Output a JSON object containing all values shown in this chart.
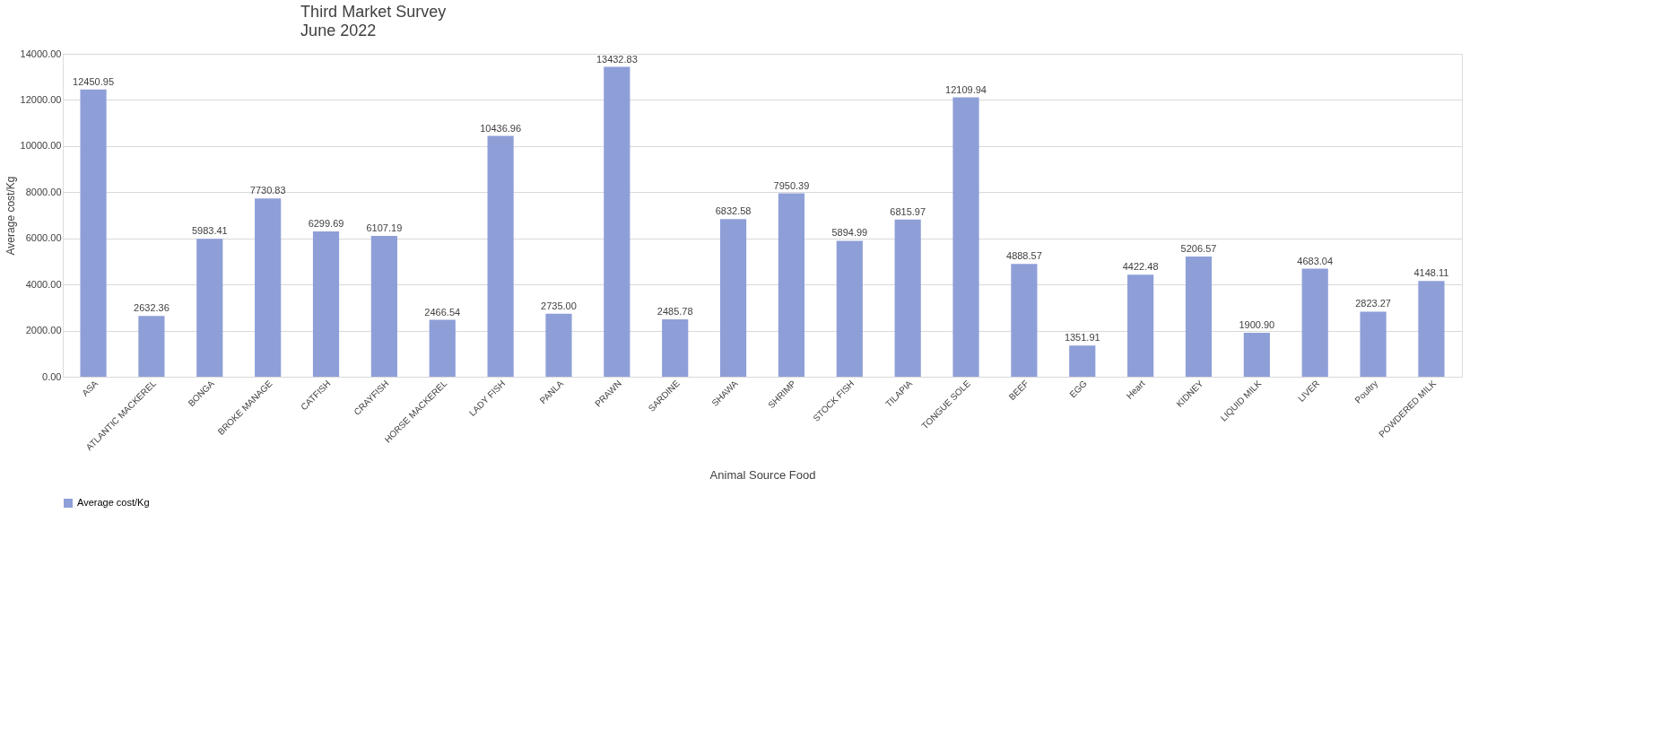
{
  "chart_data": {
    "type": "bar",
    "title": "Third Market Survey",
    "subtitle": "June  2022",
    "xlabel": "Animal Source Food",
    "ylabel": "Average cost/Kg",
    "categories": [
      "ASA",
      "ATLANTIC MACKEREL",
      "BONGA",
      "BROKE MANAGE",
      "CATFISH",
      "CRAYFISH",
      "HORSE MACKEREL",
      "LADY FISH",
      "PANLA",
      "PRAWN",
      "SARDINE",
      "SHAWA",
      "SHRIMP",
      "STOCK FISH",
      "TILAPIA",
      "TONGUE SOLE",
      "BEEF",
      "EGG",
      "Heart",
      "KIDNEY",
      "LIQUID MILK",
      "LIVER",
      "Poultry",
      "POWDERED MILK"
    ],
    "series": [
      {
        "name": "Average cost/Kg",
        "color": "#8e9fd8",
        "values": [
          12450.95,
          2632.36,
          5983.41,
          7730.83,
          6299.69,
          6107.19,
          2466.54,
          10436.96,
          2735.0,
          13432.83,
          2485.78,
          6832.58,
          7950.39,
          5894.99,
          6815.97,
          12109.94,
          4888.57,
          1351.91,
          4422.48,
          5206.57,
          1900.9,
          4683.04,
          2823.27,
          4148.11
        ],
        "value_labels": [
          "12450.95",
          "2632.36",
          "5983.41",
          "7730.83",
          "6299.69",
          "6107.19",
          "2466.54",
          "10436.96",
          "2735.00",
          "13432.83",
          "2485.78",
          "6832.58",
          "7950.39",
          "5894.99",
          "6815.97",
          "12109.94",
          "4888.57",
          "1351.91",
          "4422.48",
          "5206.57",
          "1900.90",
          "4683.04",
          "2823.27",
          "4148.11"
        ]
      }
    ],
    "ylim": [
      0,
      14000
    ],
    "yticks": [
      {
        "value": 0,
        "label": "0.00"
      },
      {
        "value": 2000,
        "label": "2000.00"
      },
      {
        "value": 4000,
        "label": "4000.00"
      },
      {
        "value": 6000,
        "label": "6000.00"
      },
      {
        "value": 8000,
        "label": "8000.00"
      },
      {
        "value": 10000,
        "label": "10000.00"
      },
      {
        "value": 12000,
        "label": "12000.00"
      },
      {
        "value": 14000,
        "label": "14000.00"
      }
    ],
    "grid": "y",
    "legend": "bottom"
  }
}
